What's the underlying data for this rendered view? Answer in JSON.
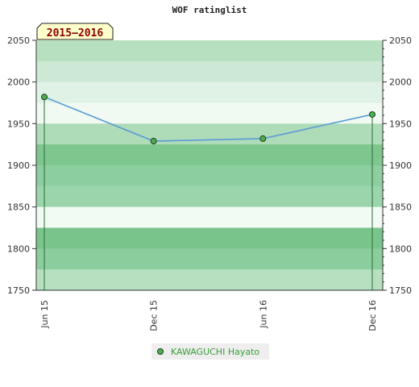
{
  "chart_data": {
    "type": "line",
    "title": "WOF ratinglist",
    "season_badge": "2015–2016",
    "xlabel": "",
    "ylabel": "",
    "ylim": [
      1750,
      2050
    ],
    "yticks": [
      "1750",
      "1800",
      "1850",
      "1900",
      "1950",
      "2000",
      "2050"
    ],
    "x": [
      "Jun 15",
      "Dec 15",
      "Jun 16",
      "Dec 16"
    ],
    "series": [
      {
        "name": "KAWAGUCHI Hayato",
        "values": [
          1982,
          1929,
          1932,
          1961
        ]
      }
    ],
    "grid": true,
    "legend": "bottom-center",
    "colors": {
      "line": "#5b9bd5",
      "marker": "#4caf50",
      "legend_text": "#3a9d3a",
      "badge_bg": "#ffffcc",
      "badge_text": "#8b0000",
      "bands": [
        "#b6e0c0",
        "#cde9d5",
        "#e0f2e5",
        "#f0faf2",
        "#aedbb8",
        "#7dc68e",
        "#8dcea0",
        "#9bd5ab",
        "#f2faf4",
        "#79c48b",
        "#8ccd9e"
      ]
    }
  }
}
